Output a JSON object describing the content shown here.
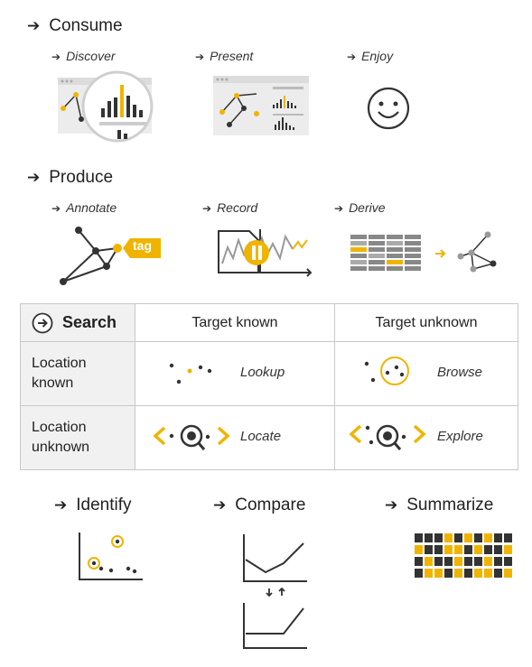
{
  "consume": {
    "title": "Consume",
    "items": [
      "Discover",
      "Present",
      "Enjoy"
    ]
  },
  "produce": {
    "title": "Produce",
    "items": [
      "Annotate",
      "Record",
      "Derive"
    ],
    "tag_label": "tag"
  },
  "search": {
    "title": "Search",
    "col_headers": [
      "Target known",
      "Target unknown"
    ],
    "row_headers": [
      "Location known",
      "Location unknown"
    ],
    "cells": [
      [
        "Lookup",
        "Browse"
      ],
      [
        "Locate",
        "Explore"
      ]
    ]
  },
  "query": {
    "items": [
      "Identify",
      "Compare",
      "Summarize"
    ]
  },
  "colors": {
    "accent": "#f0b400",
    "dark": "#333333",
    "gray": "#9a9a9a",
    "lightgray": "#e9e9e9"
  }
}
